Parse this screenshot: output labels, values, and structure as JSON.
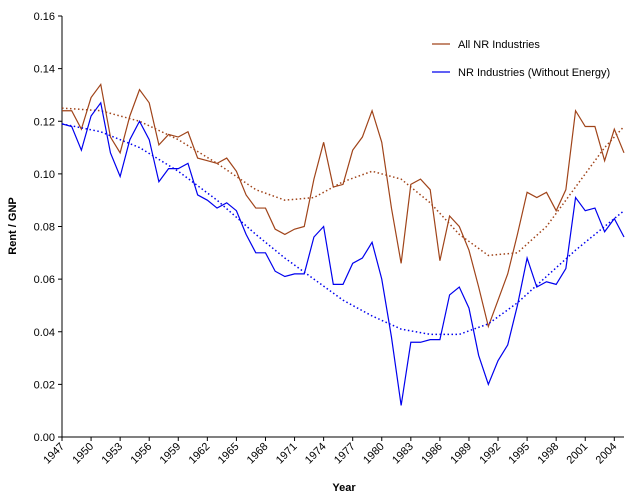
{
  "chart_data": {
    "type": "line",
    "x_label": "Year",
    "y_label": "Rent / GNP",
    "x": [
      1947,
      1948,
      1949,
      1950,
      1951,
      1952,
      1953,
      1954,
      1955,
      1956,
      1957,
      1958,
      1959,
      1960,
      1961,
      1962,
      1963,
      1964,
      1965,
      1966,
      1967,
      1968,
      1969,
      1970,
      1971,
      1972,
      1973,
      1974,
      1975,
      1976,
      1977,
      1978,
      1979,
      1980,
      1981,
      1982,
      1983,
      1984,
      1985,
      1986,
      1987,
      1988,
      1989,
      1990,
      1991,
      1992,
      1993,
      1994,
      1995,
      1996,
      1997,
      1998,
      1999,
      2000,
      2001,
      2002,
      2003,
      2004,
      2005
    ],
    "xlim": [
      1947,
      2005
    ],
    "xticks": [
      1947,
      1950,
      1953,
      1956,
      1959,
      1962,
      1965,
      1968,
      1971,
      1974,
      1977,
      1980,
      1983,
      1986,
      1989,
      1992,
      1995,
      1998,
      2001,
      2004
    ],
    "ylim": [
      0,
      0.16
    ],
    "yticks": [
      {
        "value": 0,
        "label": "0.00"
      },
      {
        "value": 0.02,
        "label": "0.02"
      },
      {
        "value": 0.04,
        "label": "0.04"
      },
      {
        "value": 0.06,
        "label": "0.06"
      },
      {
        "value": 0.08,
        "label": "0.08"
      },
      {
        "value": 0.1,
        "label": "0.10"
      },
      {
        "value": 0.12,
        "label": "0.12"
      },
      {
        "value": 0.14,
        "label": "0.14"
      },
      {
        "value": 0.16,
        "label": "0.16"
      }
    ],
    "legend": "top-right",
    "series": [
      {
        "name": "All NR Industries",
        "color": "#a0441a",
        "values": [
          0.124,
          0.124,
          0.117,
          0.129,
          0.134,
          0.114,
          0.108,
          0.122,
          0.132,
          0.127,
          0.111,
          0.115,
          0.114,
          0.116,
          0.106,
          0.105,
          0.104,
          0.106,
          0.101,
          0.092,
          0.087,
          0.087,
          0.079,
          0.077,
          0.079,
          0.08,
          0.098,
          0.112,
          0.095,
          0.096,
          0.109,
          0.114,
          0.124,
          0.112,
          0.087,
          0.066,
          0.096,
          0.098,
          0.094,
          0.067,
          0.084,
          0.08,
          0.071,
          0.057,
          0.042,
          0.052,
          0.062,
          0.077,
          0.093,
          0.091,
          0.093,
          0.086,
          0.094,
          0.124,
          0.118,
          0.118,
          0.105,
          0.117,
          0.108
        ],
        "trend": {
          "x": [
            1947,
            1951,
            1955,
            1959,
            1963,
            1967,
            1970,
            1973,
            1976,
            1979,
            1982,
            1985,
            1988,
            1991,
            1994,
            1997,
            2000,
            2003,
            2005
          ],
          "values": [
            0.125,
            0.124,
            0.12,
            0.113,
            0.104,
            0.094,
            0.09,
            0.091,
            0.097,
            0.101,
            0.098,
            0.089,
            0.077,
            0.069,
            0.07,
            0.08,
            0.095,
            0.11,
            0.118
          ]
        }
      },
      {
        "name": "NR Industries (Without Energy)",
        "color": "#0000ee",
        "values": [
          0.119,
          0.118,
          0.109,
          0.122,
          0.127,
          0.108,
          0.099,
          0.113,
          0.12,
          0.113,
          0.097,
          0.102,
          0.102,
          0.104,
          0.092,
          0.09,
          0.087,
          0.089,
          0.086,
          0.077,
          0.07,
          0.07,
          0.063,
          0.061,
          0.062,
          0.062,
          0.076,
          0.08,
          0.058,
          0.058,
          0.066,
          0.068,
          0.074,
          0.06,
          0.038,
          0.012,
          0.036,
          0.036,
          0.037,
          0.037,
          0.054,
          0.057,
          0.049,
          0.031,
          0.02,
          0.029,
          0.035,
          0.05,
          0.068,
          0.057,
          0.059,
          0.058,
          0.064,
          0.091,
          0.086,
          0.087,
          0.078,
          0.083,
          0.076
        ],
        "trend": {
          "x": [
            1947,
            1951,
            1955,
            1959,
            1963,
            1967,
            1970,
            1973,
            1976,
            1979,
            1982,
            1985,
            1988,
            1991,
            1994,
            1997,
            2000,
            2003,
            2005
          ],
          "values": [
            0.119,
            0.116,
            0.11,
            0.101,
            0.09,
            0.077,
            0.068,
            0.06,
            0.052,
            0.046,
            0.041,
            0.039,
            0.039,
            0.043,
            0.051,
            0.061,
            0.071,
            0.08,
            0.086
          ]
        }
      }
    ]
  }
}
